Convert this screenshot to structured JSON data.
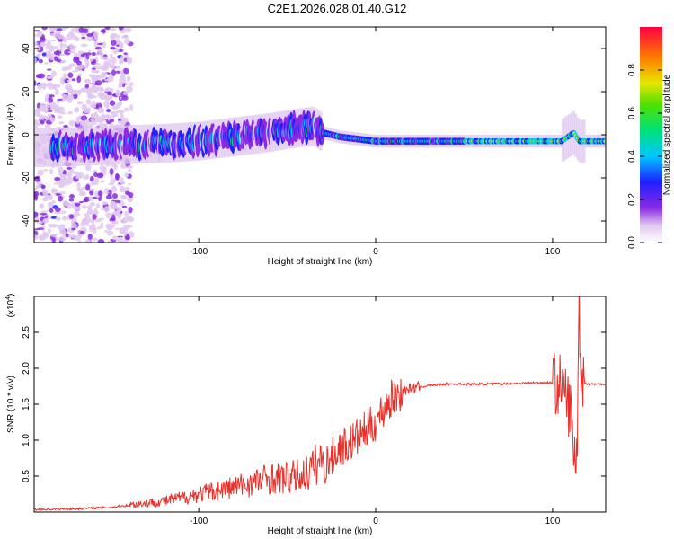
{
  "page_title": "C2E1.2026.028.01.40.G12",
  "colors": {
    "frame": "#000000",
    "snr_line": "#e8302a",
    "spectrum_background": "#ffffff"
  },
  "chart_data": [
    {
      "id": "spectrogram",
      "type": "heatmap",
      "title": "C2E1.2026.028.01.40.G12",
      "xlabel": "Height of straight line (km)",
      "ylabel": "Frequency (Hz)",
      "xlim": [
        -193,
        130
      ],
      "ylim": [
        -50,
        50
      ],
      "xticks": [
        -100,
        0,
        100
      ],
      "xtick_labels": [
        "-100",
        "0",
        "100"
      ],
      "yticks": [
        -40,
        -20,
        0,
        20,
        40
      ],
      "ytick_labels": [
        "-40",
        "-20",
        "0",
        "20",
        "40"
      ],
      "ridge": {
        "description": "frequency of spectral peak vs height",
        "x": [
          -190,
          -150,
          -120,
          -100,
          -80,
          -60,
          -45,
          -35,
          -30,
          -20,
          -10,
          0,
          10,
          30,
          60,
          90,
          105,
          112,
          115,
          130
        ],
        "y": [
          -6,
          -5,
          -4,
          -3,
          -1,
          1,
          3,
          4,
          1,
          -1,
          -2,
          -3,
          -3,
          -3,
          -3,
          -3,
          -3,
          1,
          -3,
          -3
        ]
      },
      "colorbar": {
        "label": "Normalized spectral amplitude",
        "range": [
          0,
          1
        ],
        "ticks": [
          0,
          0.2,
          0.4,
          0.6,
          0.8
        ],
        "tick_labels": [
          "0.0",
          "0.2",
          "0.4",
          "0.6",
          "0.8"
        ]
      }
    },
    {
      "id": "snr",
      "type": "line",
      "xlabel": "Height of straight line (km)",
      "ylabel": "SNR (10 * v/v)",
      "scale_label": "(x10",
      "scale_exp": "4",
      "scale_close": ")",
      "xlim": [
        -193,
        130
      ],
      "ylim": [
        0,
        3.0
      ],
      "xticks": [
        -100,
        0,
        100
      ],
      "xtick_labels": [
        "-100",
        "0",
        "100"
      ],
      "yticks": [
        0.5,
        1.0,
        1.5,
        2.0,
        2.5
      ],
      "ytick_labels": [
        "0.5",
        "1.0",
        "1.5",
        "2.0",
        "2.5"
      ],
      "series": [
        {
          "name": "SNR",
          "x": [
            -193,
            -170,
            -150,
            -140,
            -120,
            -100,
            -80,
            -70,
            -60,
            -50,
            -40,
            -35,
            -30,
            -25,
            -20,
            -15,
            -10,
            -5,
            0,
            5,
            10,
            15,
            20,
            30,
            40,
            60,
            80,
            90,
            100,
            105,
            108,
            110,
            112,
            113,
            114,
            115,
            116,
            118,
            120,
            125,
            130
          ],
          "y": [
            0.02,
            0.03,
            0.05,
            0.08,
            0.12,
            0.2,
            0.28,
            0.33,
            0.38,
            0.38,
            0.42,
            0.5,
            0.62,
            0.75,
            0.9,
            0.95,
            1.05,
            1.15,
            1.25,
            1.45,
            1.6,
            1.68,
            1.72,
            1.76,
            1.78,
            1.78,
            1.79,
            1.8,
            1.8,
            1.75,
            1.6,
            1.4,
            0.9,
            0.5,
            1.2,
            2.9,
            2.0,
            1.8,
            1.78,
            1.78,
            1.78
          ]
        }
      ]
    }
  ]
}
